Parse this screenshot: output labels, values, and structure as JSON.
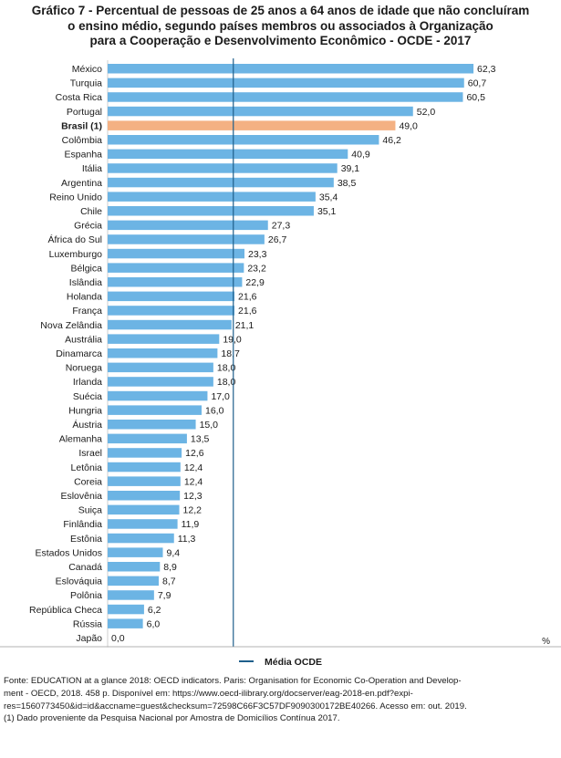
{
  "title_lines": [
    "Gráfico 7 - Percentual de pessoas de 25 anos a 64 anos de idade que não concluíram",
    "o ensino médio, segundo países membros ou associados à Organização",
    "para a Cooperação e Desenvolvimento Econômico - OCDE - 2017"
  ],
  "unit_label": "%",
  "legend_label": "Média OCDE",
  "footer_lines": [
    "Fonte: EDUCATION at a glance 2018: OECD indicators. Paris: Organisation for Economic Co-Operation and Develop-",
    "ment - OECD, 2018. 458 p. Disponível em: https://www.oecd-ilibrary.org/docserver/eag-2018-en.pdf?expi-",
    "res=1560773450&id=id&accname=guest&checksum=72598C66F3C57DF9090300172BE40266. Acesso em: out. 2019.",
    "(1) Dado proveniente da Pesquisa Nacional por Amostra de Domicílios Contínua 2017."
  ],
  "colors": {
    "bar": "#6cb4e4",
    "highlight": "#f4b183",
    "average_line": "#1f5f8b",
    "gridline": "#cfcfcf"
  },
  "chart_data": {
    "type": "bar",
    "orientation": "horizontal",
    "categories": [
      "México",
      "Turquia",
      "Costa Rica",
      "Portugal",
      "Brasil (1)",
      "Colômbia",
      "Espanha",
      "Itália",
      "Argentina",
      "Reino Unido",
      "Chile",
      "Grécia",
      "África do Sul",
      "Luxemburgo",
      "Bélgica",
      "Islândia",
      "Holanda",
      "França",
      "Nova Zelândia",
      "Austrália",
      "Dinamarca",
      "Noruega",
      "Irlanda",
      "Suécia",
      "Hungria",
      "Áustria",
      "Alemanha",
      "Israel",
      "Letônia",
      "Coreia",
      "Eslovênia",
      "Suiça",
      "Finlândia",
      "Estônia",
      "Estados Unidos",
      "Canadá",
      "Eslováquia",
      "Polônia",
      "República Checa",
      "Rússia",
      "Japão"
    ],
    "value_labels": [
      "62,3",
      "60,7",
      "60,5",
      "52,0",
      "49,0",
      "46,2",
      "40,9",
      "39,1",
      "38,5",
      "35,4",
      "35,1",
      "27,3",
      "26,7",
      "23,3",
      "23,2",
      "22,9",
      "21,6",
      "21,6",
      "21,1",
      "19,0",
      "18,7",
      "18,0",
      "18,0",
      "17,0",
      "16,0",
      "15,0",
      "13,5",
      "12,6",
      "12,4",
      "12,4",
      "12,3",
      "12,2",
      "11,9",
      "11,3",
      "9,4",
      "8,9",
      "8,7",
      "7,9",
      "6,2",
      "6,0",
      "0,0"
    ],
    "values": [
      62.3,
      60.7,
      60.5,
      52.0,
      49.0,
      46.2,
      40.9,
      39.1,
      38.5,
      35.4,
      35.1,
      27.3,
      26.7,
      23.3,
      23.2,
      22.9,
      21.6,
      21.6,
      21.1,
      19.0,
      18.7,
      18.0,
      18.0,
      17.0,
      16.0,
      15.0,
      13.5,
      12.6,
      12.4,
      12.4,
      12.3,
      12.2,
      11.9,
      11.3,
      9.4,
      8.9,
      8.7,
      7.9,
      6.2,
      6.0,
      0.0
    ],
    "bold_categories": [
      "Brasil (1)"
    ],
    "highlight_category": "Brasil (1)",
    "average": 21.4,
    "xlim": [
      0,
      64
    ]
  }
}
